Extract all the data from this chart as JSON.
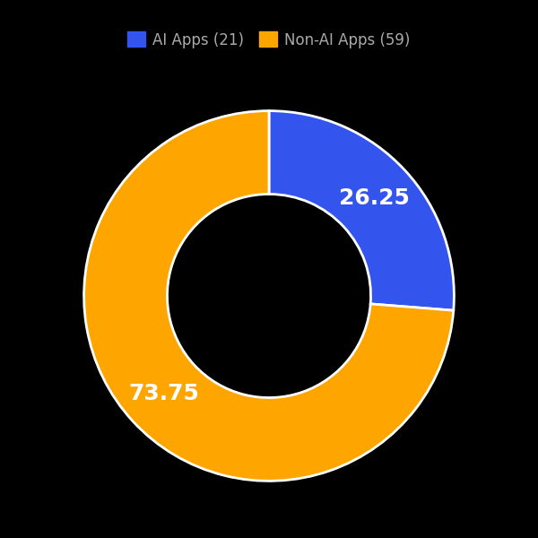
{
  "labels": [
    "AI Apps (21)",
    "Non-AI Apps (59)"
  ],
  "values": [
    26.25,
    73.75
  ],
  "colors": [
    "#3355EE",
    "#FFA500"
  ],
  "text_labels": [
    "26.25",
    "73.75"
  ],
  "text_color": "white",
  "background_color": "#000000",
  "wedge_edge_color": "white",
  "donut_width": 0.45,
  "legend_fontsize": 12,
  "label_fontsize": 18,
  "legend_text_color": "#aaaaaa"
}
